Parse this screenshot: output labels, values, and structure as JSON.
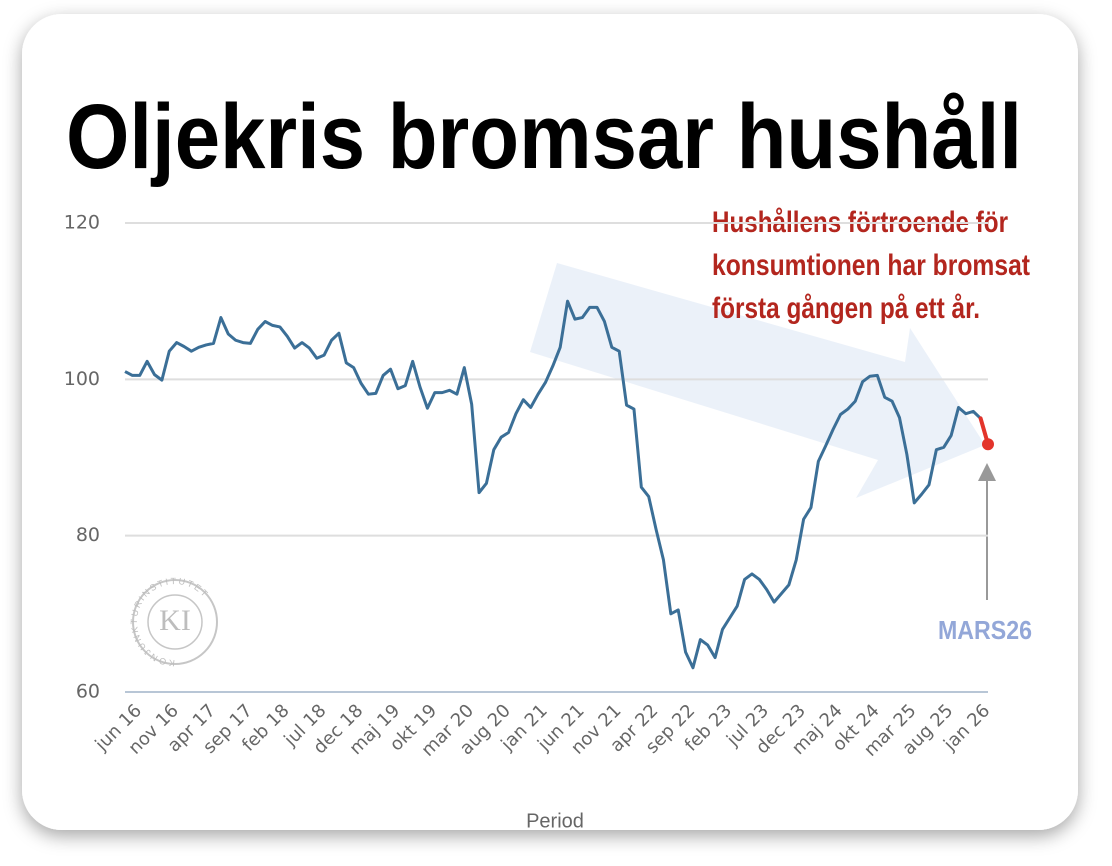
{
  "chart_data": {
    "type": "line",
    "title": "Oljekris bromsar hushåll",
    "annotation": [
      "Hushållens förtroende för",
      "konsumtionen har bromsat",
      "första gången på ett år."
    ],
    "callout": "MARS26",
    "logo": {
      "initials": "KI",
      "ring": "KONJUNKTURINSTITUTET"
    },
    "xlabel": "Period",
    "categories": [
      "jun 16",
      null,
      null,
      null,
      null,
      "nov 16",
      null,
      null,
      null,
      null,
      "apr 17",
      null,
      null,
      null,
      null,
      "sep 17",
      null,
      null,
      null,
      null,
      "feb 18",
      null,
      null,
      null,
      null,
      "jul 18",
      null,
      null,
      null,
      null,
      "dec 18",
      null,
      null,
      null,
      null,
      "maj 19",
      null,
      null,
      null,
      null,
      "okt 19",
      null,
      null,
      null,
      null,
      "mar 20",
      null,
      null,
      null,
      null,
      "aug 20",
      null,
      null,
      null,
      null,
      "jan 21",
      null,
      null,
      null,
      null,
      "jun 21",
      null,
      null,
      null,
      null,
      "nov 21",
      null,
      null,
      null,
      null,
      "apr 22",
      null,
      null,
      null,
      null,
      "sep 22",
      null,
      null,
      null,
      null,
      "feb 23",
      null,
      null,
      null,
      null,
      "jul 23",
      null,
      null,
      null,
      null,
      "dec 23",
      null,
      null,
      null,
      null,
      "maj 24",
      null,
      null,
      null,
      null,
      "okt 24",
      null,
      null,
      null,
      null,
      "mar 25",
      null,
      null,
      null,
      null,
      "aug 25",
      null,
      null,
      null,
      null,
      "jan 26",
      null,
      null
    ],
    "series": [
      {
        "color": "#3b6f97",
        "highlight_color": "#e3342b",
        "values": [
          101.0,
          100.5,
          100.5,
          102.3,
          100.6,
          99.9,
          103.6,
          104.7,
          104.2,
          103.6,
          104.1,
          104.4,
          104.6,
          107.9,
          105.8,
          105.0,
          104.7,
          104.6,
          106.4,
          107.4,
          106.9,
          106.7,
          105.5,
          104.0,
          104.7,
          104.0,
          102.7,
          103.1,
          105.0,
          105.9,
          102.1,
          101.5,
          99.5,
          98.1,
          98.2,
          100.5,
          101.3,
          98.8,
          99.2,
          102.3,
          99.0,
          96.3,
          98.3,
          98.3,
          98.6,
          98.1,
          101.5,
          96.8,
          85.5,
          86.7,
          91.0,
          92.6,
          93.2,
          95.6,
          97.4,
          96.4,
          98.1,
          99.6,
          101.7,
          104.1,
          110.0,
          107.7,
          107.9,
          109.2,
          109.2,
          107.4,
          104.1,
          103.6,
          96.7,
          96.2,
          86.2,
          85.0,
          80.8,
          76.9,
          70.0,
          70.5,
          65.1,
          63.1,
          66.7,
          66.0,
          64.4,
          68.0,
          69.5,
          71.0,
          74.4,
          75.1,
          74.4,
          73.1,
          71.5,
          72.6,
          73.7,
          76.9,
          82.1,
          83.6,
          89.5,
          91.5,
          93.6,
          95.5,
          96.2,
          97.2,
          99.7,
          100.4,
          100.5,
          97.7,
          97.2,
          95.1,
          90.4,
          84.2,
          85.3,
          86.5,
          91.0,
          91.3,
          92.8,
          96.4,
          95.6,
          95.9,
          95.0,
          91.7
        ]
      }
    ],
    "ylim": [
      60,
      120
    ],
    "yticks": [
      60,
      80,
      100,
      120
    ],
    "grid": true
  }
}
